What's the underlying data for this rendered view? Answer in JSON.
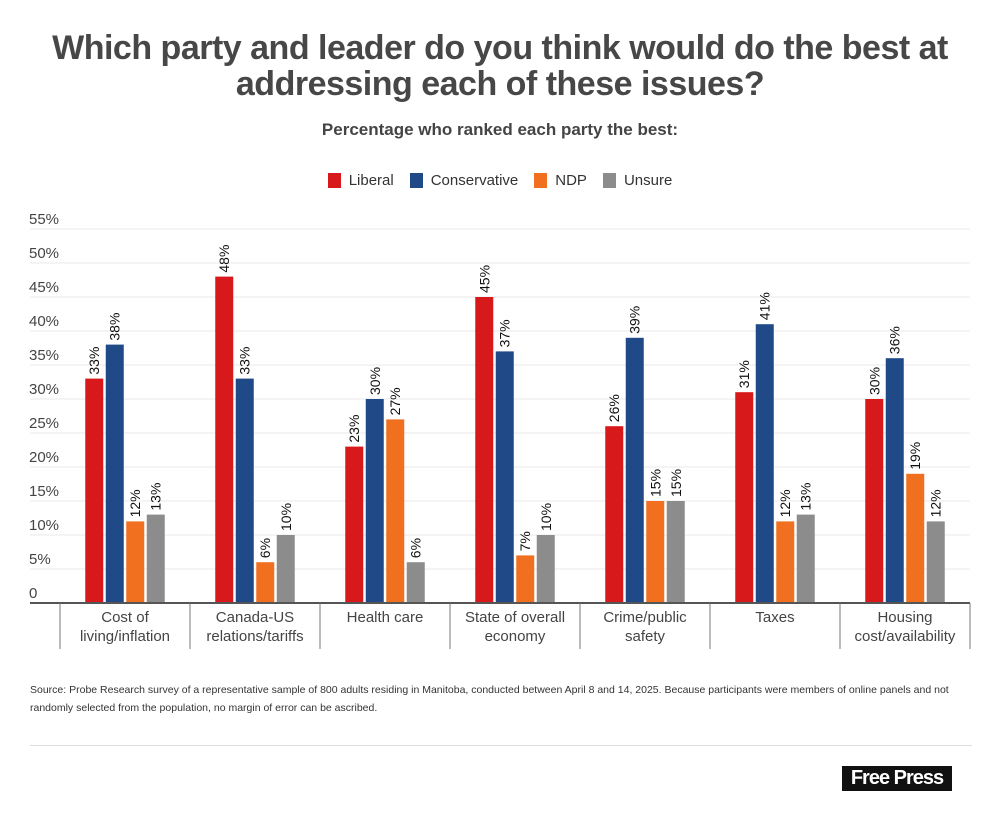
{
  "title_lines": [
    "Which party and leader do you think would do the best at",
    "addressing each of these issues?"
  ],
  "subtitle": "Percentage who ranked each party the best:",
  "colors": {
    "Liberal": "#d7191c",
    "Conservative": "#1f4a87",
    "NDP": "#f07020",
    "Unsure": "#8c8c8c",
    "grid": "#e8e8e8",
    "axis": "#555555"
  },
  "chart_data": {
    "type": "bar",
    "title": "Which party and leader do you think would do the best at addressing each of these issues?",
    "subtitle": "Percentage who ranked each party the best:",
    "xlabel": "",
    "ylabel": "",
    "ylim": [
      0,
      55
    ],
    "yticks": [
      0,
      5,
      10,
      15,
      20,
      25,
      30,
      35,
      40,
      45,
      50,
      55
    ],
    "ytick_labels": [
      "0",
      "5%",
      "10%",
      "15%",
      "20%",
      "25%",
      "30%",
      "35%",
      "40%",
      "45%",
      "50%",
      "55%"
    ],
    "grid": true,
    "legend_position": "top-center",
    "categories": [
      [
        "Cost of",
        "living/inflation"
      ],
      [
        "Canada-US",
        "relations/tariffs"
      ],
      [
        "Health care"
      ],
      [
        "State of overall",
        "economy"
      ],
      [
        "Crime/public",
        "safety"
      ],
      [
        "Taxes"
      ],
      [
        "Housing",
        "cost/availability"
      ]
    ],
    "series": [
      {
        "name": "Liberal",
        "values": [
          33,
          48,
          23,
          45,
          26,
          31,
          30
        ]
      },
      {
        "name": "Conservative",
        "values": [
          38,
          33,
          30,
          37,
          39,
          41,
          36
        ]
      },
      {
        "name": "NDP",
        "values": [
          12,
          6,
          27,
          7,
          15,
          12,
          19
        ]
      },
      {
        "name": "Unsure",
        "values": [
          13,
          10,
          6,
          10,
          15,
          13,
          12
        ]
      }
    ],
    "value_label_suffix": "%"
  },
  "source": "Source: Probe Research survey of a representative sample of 800 adults residing in Manitoba, conducted between April 8 and 14, 2025. Because participants were members of online panels and not randomly selected from the population, no margin of error can be ascribed.",
  "logo": "Free Press"
}
